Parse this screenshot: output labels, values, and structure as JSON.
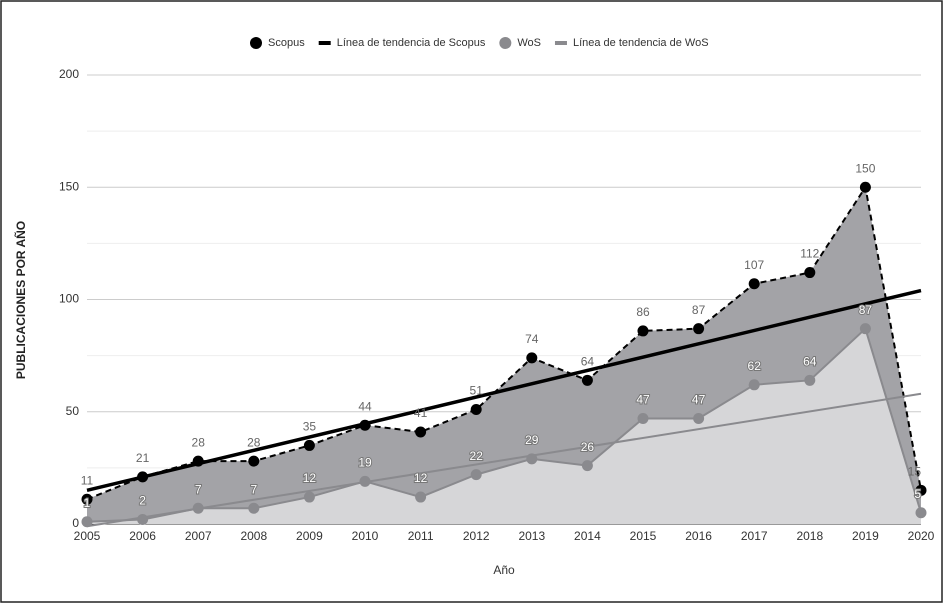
{
  "chart_data": {
    "type": "area",
    "legend": "top",
    "y_label": "PUBLICACIONES POR AÑO",
    "x_label": "Año",
    "categories": [
      "2005",
      "2006",
      "2007",
      "2008",
      "2009",
      "2010",
      "2011",
      "2012",
      "2013",
      "2014",
      "2015",
      "2016",
      "2017",
      "2018",
      "2019",
      "2020"
    ],
    "series": [
      {
        "name": "Scopus",
        "color": "#000000",
        "area_color": "#a3a3a7",
        "values": [
          11,
          21,
          28,
          28,
          35,
          44,
          41,
          51,
          74,
          64,
          86,
          87,
          107,
          112,
          150,
          15
        ]
      },
      {
        "name": "WoS",
        "color": "#8a8a8e",
        "area_color": "#d6d6d8",
        "values": [
          1,
          2,
          7,
          7,
          12,
          19,
          12,
          22,
          29,
          26,
          47,
          47,
          62,
          64,
          87,
          5
        ]
      }
    ],
    "trendlines": [
      {
        "name": "Línea de tendencia de Scopus",
        "color": "#000000",
        "values": [
          15,
          104
        ]
      },
      {
        "name": "Línea de tendencia de WoS",
        "color": "#8a8a8e",
        "values": [
          -1,
          58
        ]
      }
    ],
    "ylim": [
      0,
      200
    ],
    "yticks": [
      0,
      50,
      100,
      150,
      200
    ],
    "minor_yticks": [
      25,
      75,
      125,
      175
    ],
    "grid": true
  }
}
